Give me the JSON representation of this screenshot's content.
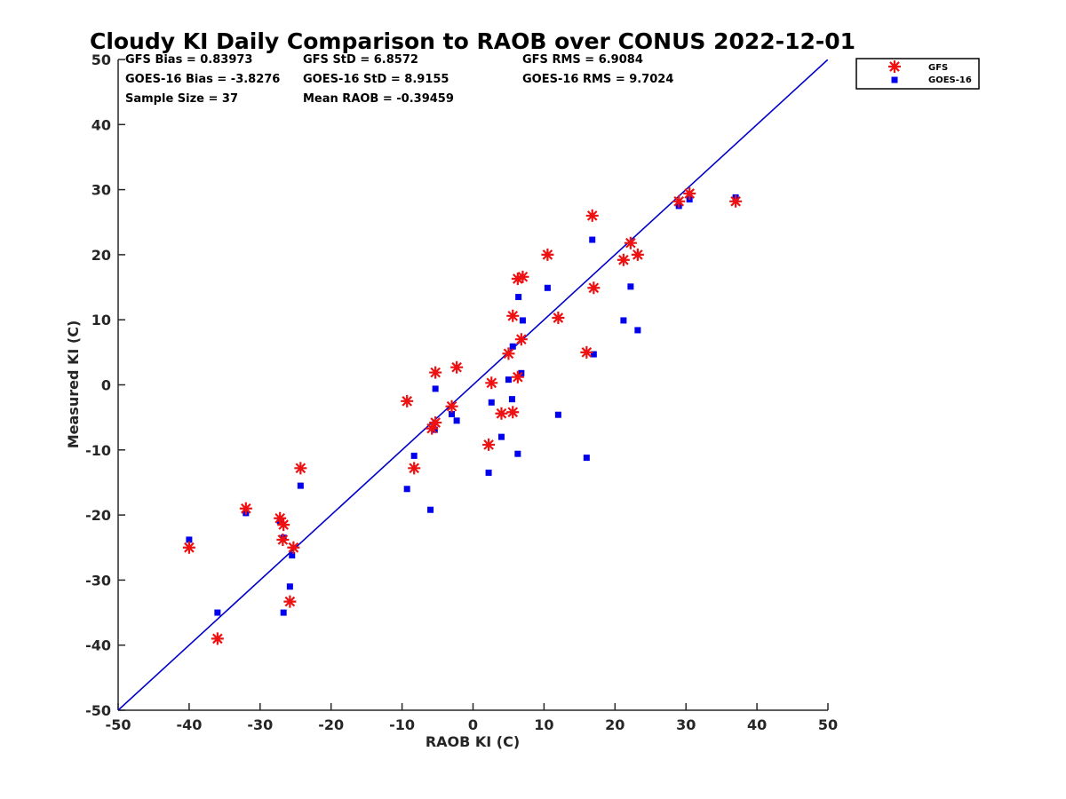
{
  "chart_data": {
    "type": "scatter",
    "title": "Cloudy KI Daily Comparison to RAOB over CONUS 2022-12-01",
    "xlabel": "RAOB KI (C)",
    "ylabel": "Measured KI (C)",
    "xlim": [
      -50,
      50
    ],
    "ylim": [
      -50,
      50
    ],
    "xticks": [
      -50,
      -40,
      -30,
      -20,
      -10,
      0,
      10,
      20,
      30,
      40,
      50
    ],
    "yticks": [
      -50,
      -40,
      -30,
      -20,
      -10,
      0,
      10,
      20,
      30,
      40,
      50
    ],
    "grid": false,
    "legend_position": "top-right",
    "reference_line": {
      "x": [
        -50,
        50
      ],
      "y": [
        -50,
        50
      ],
      "color": "#0000cc"
    },
    "stats": [
      "GFS Bias = 0.83973",
      "GFS StD = 6.8572",
      "GFS RMS = 6.9084",
      "GOES-16 Bias = -3.8276",
      "GOES-16 StD = 8.9155",
      "GOES-16 RMS = 9.7024",
      "Sample Size = 37",
      "Mean RAOB = -0.39459"
    ],
    "series": [
      {
        "name": "GFS",
        "marker": "asterisk",
        "color": "#ee1111",
        "points": [
          [
            -40,
            -25
          ],
          [
            -36,
            -39
          ],
          [
            -32,
            -19
          ],
          [
            -27.2,
            -20.5
          ],
          [
            -26.7,
            -21.5
          ],
          [
            -26.8,
            -23.8
          ],
          [
            -25.8,
            -33.3
          ],
          [
            -25.3,
            -25
          ],
          [
            -24.3,
            -12.8
          ],
          [
            -9.3,
            -2.5
          ],
          [
            -8.3,
            -12.8
          ],
          [
            -5.8,
            -6.7
          ],
          [
            -5.3,
            -5.8
          ],
          [
            -5.3,
            1.9
          ],
          [
            -3,
            -3.3
          ],
          [
            -2.3,
            2.7
          ],
          [
            2.2,
            -9.2
          ],
          [
            2.6,
            0.3
          ],
          [
            4,
            -4.4
          ],
          [
            5,
            4.8
          ],
          [
            5.6,
            -4.2
          ],
          [
            5.6,
            10.6
          ],
          [
            6.3,
            1.2
          ],
          [
            6.3,
            16.3
          ],
          [
            6.8,
            7
          ],
          [
            7,
            16.6
          ],
          [
            10.5,
            20
          ],
          [
            12,
            10.3
          ],
          [
            16,
            5
          ],
          [
            16.8,
            26
          ],
          [
            17,
            14.9
          ],
          [
            21.2,
            19.2
          ],
          [
            22.2,
            21.8
          ],
          [
            23.2,
            20
          ],
          [
            29,
            28.2
          ],
          [
            30.5,
            29.4
          ],
          [
            37,
            28.2
          ]
        ]
      },
      {
        "name": "GOES-16",
        "marker": "square",
        "color": "#0000ee",
        "points": [
          [
            -40,
            -23.8
          ],
          [
            -36,
            -35
          ],
          [
            -32,
            -19.7
          ],
          [
            -27.2,
            -20.9
          ],
          [
            -26.7,
            -23.5
          ],
          [
            -26.7,
            -35
          ],
          [
            -25.8,
            -31
          ],
          [
            -25.5,
            -26.2
          ],
          [
            -24.3,
            -15.5
          ],
          [
            -9.3,
            -16
          ],
          [
            -8.3,
            -10.9
          ],
          [
            -6,
            -19.2
          ],
          [
            -5.4,
            -6.9
          ],
          [
            -5.3,
            -0.6
          ],
          [
            -3,
            -4.5
          ],
          [
            -2.3,
            -5.5
          ],
          [
            2.2,
            -13.5
          ],
          [
            2.6,
            -2.7
          ],
          [
            4,
            -8
          ],
          [
            5,
            0.8
          ],
          [
            5.5,
            -2.2
          ],
          [
            5.6,
            5.9
          ],
          [
            6.3,
            -10.6
          ],
          [
            6.4,
            13.5
          ],
          [
            6.8,
            1.8
          ],
          [
            7,
            9.9
          ],
          [
            10.5,
            14.9
          ],
          [
            12,
            -4.6
          ],
          [
            16,
            -11.2
          ],
          [
            16.8,
            22.3
          ],
          [
            17,
            4.7
          ],
          [
            21.2,
            9.9
          ],
          [
            22.2,
            15.1
          ],
          [
            23.2,
            8.4
          ],
          [
            29,
            27.5
          ],
          [
            30.5,
            28.5
          ],
          [
            37,
            28.8
          ]
        ]
      }
    ]
  }
}
